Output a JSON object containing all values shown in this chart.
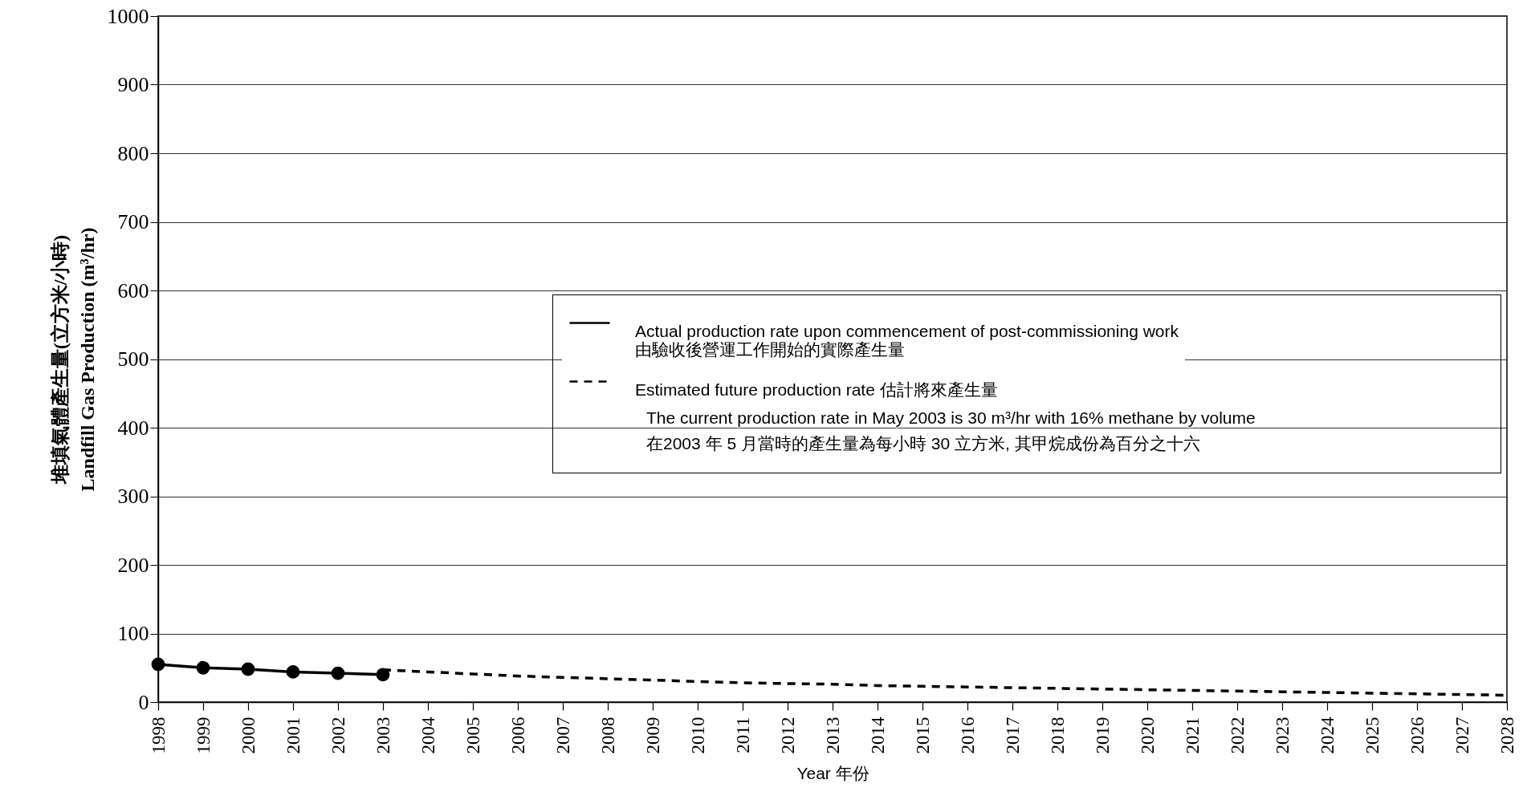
{
  "chart_data": {
    "type": "line",
    "xlabel": "Year 年份",
    "ylabel": "堆填氣體產生量(立方米/小時)\nLandfill Gas Production (m³/hr)",
    "xlim": [
      1998,
      2028
    ],
    "xticks": [
      1998,
      1999,
      2000,
      2001,
      2002,
      2003,
      2004,
      2005,
      2006,
      2007,
      2008,
      2009,
      2010,
      2011,
      2012,
      2013,
      2014,
      2015,
      2016,
      2017,
      2018,
      2019,
      2020,
      2021,
      2022,
      2023,
      2024,
      2025,
      2026,
      2027,
      2028
    ],
    "ylim": [
      0,
      1000
    ],
    "yticks": [
      0,
      100,
      200,
      300,
      400,
      500,
      600,
      700,
      800,
      900,
      {
        "value": 1000,
        "label": "1000"
      }
    ],
    "grid": "y",
    "legend": "right",
    "series": [
      {
        "name": "Actual production rate upon commencement of post-commissioning work\n由驗收後營運工作開始的實際產生量",
        "color": "#000000",
        "marker": "circle",
        "line_style": "solid",
        "x": [
          1998,
          1999,
          2000,
          2001,
          2002,
          2003
        ],
        "values": [
          55,
          50,
          48,
          44,
          42,
          40
        ]
      },
      {
        "name": "Estimated future production rate 估計將來產生量",
        "color": "#000000",
        "marker": "none",
        "line_style": "dashed",
        "x": [
          2003,
          2004,
          2005,
          2006,
          2007,
          2008,
          2009,
          2010,
          2011,
          2012,
          2013,
          2014,
          2015,
          2016,
          2017,
          2018,
          2019,
          2020,
          2021,
          2022,
          2023,
          2024,
          2025,
          2026,
          2027,
          2028
        ],
        "values": [
          47,
          44,
          41,
          38,
          36,
          34,
          32,
          30,
          28,
          27,
          26,
          24,
          23,
          22,
          21,
          20,
          19,
          18,
          17,
          16,
          15,
          14,
          13,
          12,
          11,
          10
        ]
      }
    ],
    "annotations": [
      "The current production rate in May 2003 is 30 m³/hr with 16% methane by volume",
      "在2003 年 5 月當時的產生量為每小時 30 立方米, 其甲烷成份為百分之十六"
    ]
  }
}
